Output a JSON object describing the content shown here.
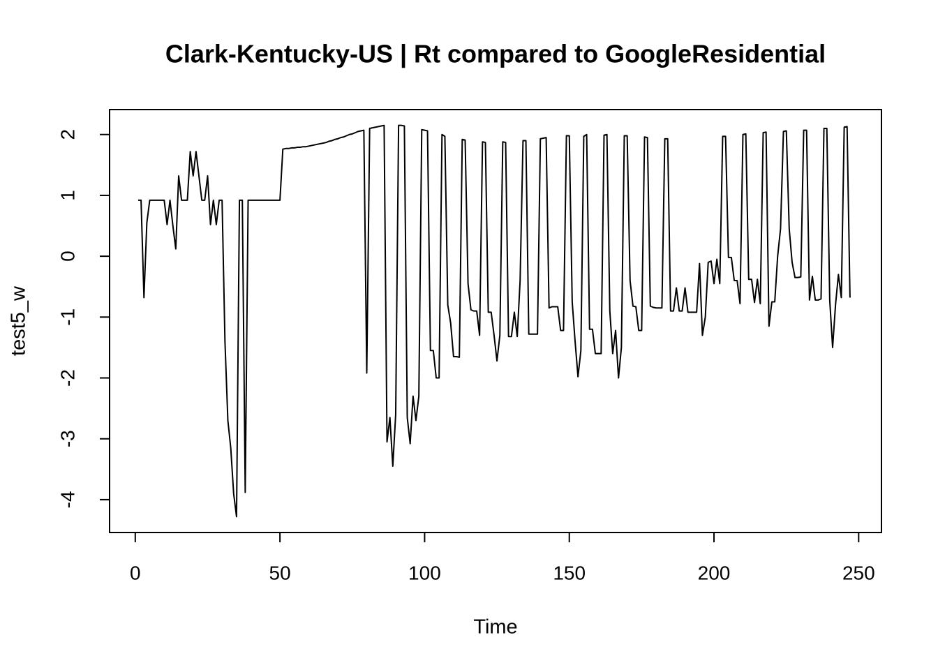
{
  "chart_data": {
    "type": "line",
    "title": "Clark-Kentucky-US | Rt compared to GoogleResidential",
    "xlabel": "Time",
    "ylabel": "test5_w",
    "x": [
      1,
      2,
      3,
      4,
      5,
      6,
      7,
      8,
      9,
      10,
      11,
      12,
      13,
      14,
      15,
      16,
      17,
      18,
      19,
      20,
      21,
      22,
      23,
      24,
      25,
      26,
      27,
      28,
      29,
      30,
      31,
      32,
      33,
      34,
      35,
      36,
      37,
      38,
      39,
      40,
      41,
      42,
      43,
      44,
      45,
      46,
      47,
      48,
      49,
      50,
      51,
      52,
      53,
      54,
      55,
      56,
      57,
      58,
      59,
      60,
      61,
      62,
      63,
      64,
      65,
      66,
      67,
      68,
      69,
      70,
      71,
      72,
      73,
      74,
      75,
      76,
      77,
      78,
      79,
      80,
      81,
      82,
      83,
      84,
      85,
      86,
      87,
      88,
      89,
      90,
      91,
      92,
      93,
      94,
      95,
      96,
      97,
      98,
      99,
      100,
      101,
      102,
      103,
      104,
      105,
      106,
      107,
      108,
      109,
      110,
      111,
      112,
      113,
      114,
      115,
      116,
      117,
      118,
      119,
      120,
      121,
      122,
      123,
      124,
      125,
      126,
      127,
      128,
      129,
      130,
      131,
      132,
      133,
      134,
      135,
      136,
      137,
      138,
      139,
      140,
      141,
      142,
      143,
      144,
      145,
      146,
      147,
      148,
      149,
      150,
      151,
      152,
      153,
      154,
      155,
      156,
      157,
      158,
      159,
      160,
      161,
      162,
      163,
      164,
      165,
      166,
      167,
      168,
      169,
      170,
      171,
      172,
      173,
      174,
      175,
      176,
      177,
      178,
      179,
      180,
      181,
      182,
      183,
      184,
      185,
      186,
      187,
      188,
      189,
      190,
      191,
      192,
      193,
      194,
      195,
      196,
      197,
      198,
      199,
      200,
      201,
      202,
      203,
      204,
      205,
      206,
      207,
      208,
      209,
      210,
      211,
      212,
      213,
      214,
      215,
      216,
      217,
      218,
      219,
      220,
      221,
      222,
      223,
      224,
      225,
      226,
      227,
      228,
      229,
      230,
      231,
      232,
      233,
      234,
      235,
      236,
      237,
      238,
      239,
      240,
      241,
      242,
      243,
      244,
      245,
      246,
      247
    ],
    "values": [
      0.92,
      0.92,
      -0.68,
      0.55,
      0.92,
      0.92,
      0.92,
      0.92,
      0.92,
      0.92,
      0.52,
      0.92,
      0.5,
      0.12,
      1.32,
      0.92,
      0.92,
      0.92,
      1.72,
      1.32,
      1.72,
      1.32,
      0.92,
      0.92,
      1.32,
      0.52,
      0.92,
      0.52,
      0.92,
      0.92,
      -1.4,
      -2.7,
      -3.15,
      -3.9,
      -4.28,
      0.92,
      0.92,
      -3.88,
      0.92,
      0.92,
      0.92,
      0.92,
      0.92,
      0.92,
      0.92,
      0.92,
      0.92,
      0.92,
      0.92,
      0.92,
      1.76,
      1.77,
      1.77,
      1.78,
      1.78,
      1.79,
      1.79,
      1.8,
      1.8,
      1.81,
      1.82,
      1.83,
      1.84,
      1.85,
      1.86,
      1.87,
      1.89,
      1.9,
      1.92,
      1.93,
      1.95,
      1.96,
      1.98,
      2.0,
      2.01,
      2.03,
      2.05,
      2.06,
      2.07,
      -1.92,
      2.1,
      2.11,
      2.12,
      2.13,
      2.14,
      2.15,
      -3.05,
      -2.65,
      -3.45,
      -2.6,
      2.15,
      2.15,
      2.14,
      -2.65,
      -3.08,
      -2.3,
      -2.7,
      -2.3,
      2.08,
      2.07,
      2.06,
      -1.55,
      -1.55,
      -2.0,
      -2.0,
      2.0,
      1.97,
      -0.8,
      -1.1,
      -1.65,
      -1.65,
      -1.66,
      1.92,
      1.91,
      -0.45,
      -0.88,
      -0.9,
      -0.9,
      -1.3,
      1.88,
      1.87,
      -0.92,
      -0.92,
      -1.3,
      -1.72,
      -1.3,
      1.88,
      1.87,
      -1.32,
      -1.32,
      -0.92,
      -1.32,
      -0.4,
      1.9,
      1.9,
      -1.28,
      -1.28,
      -1.28,
      -1.28,
      1.93,
      1.94,
      1.95,
      -0.85,
      -0.83,
      -0.83,
      -0.83,
      -1.22,
      -1.22,
      1.98,
      1.98,
      -0.75,
      -1.4,
      -1.98,
      -1.55,
      1.97,
      2.0,
      -1.2,
      -1.2,
      -1.6,
      -1.6,
      -1.6,
      1.99,
      2.0,
      -0.9,
      -1.6,
      -1.22,
      -2.0,
      -1.5,
      1.98,
      1.98,
      -0.4,
      -0.82,
      -0.83,
      -1.22,
      -1.22,
      1.96,
      1.95,
      -0.82,
      -0.84,
      -0.85,
      -0.85,
      -0.85,
      1.93,
      1.93,
      -0.9,
      -0.9,
      -0.52,
      -0.9,
      -0.9,
      -0.52,
      -0.92,
      -0.92,
      -0.92,
      -0.92,
      -0.12,
      -1.3,
      -1.0,
      -0.1,
      -0.08,
      -0.45,
      -0.05,
      -0.45,
      1.97,
      1.97,
      -0.02,
      -0.02,
      -0.4,
      -0.4,
      -0.78,
      2.0,
      2.01,
      -0.38,
      -0.38,
      -0.76,
      -0.38,
      -0.78,
      2.03,
      2.04,
      -1.15,
      -0.75,
      -0.75,
      0,
      0.45,
      2.05,
      2.06,
      0.45,
      -0.1,
      -0.35,
      -0.35,
      -0.34,
      2.07,
      2.07,
      -0.72,
      -0.33,
      -0.72,
      -0.72,
      -0.7,
      2.1,
      2.1,
      -0.72,
      -1.5,
      -0.8,
      -0.3,
      -0.68,
      2.12,
      2.13,
      -0.68
    ],
    "color": "#000000",
    "xlim": [
      -8.88,
      257.88
    ],
    "xticks": [
      0,
      50,
      100,
      150,
      200,
      250
    ],
    "ylim": [
      -4.54,
      2.41
    ],
    "yticks": [
      -4,
      -3,
      -2,
      -1,
      0,
      1,
      2
    ]
  }
}
